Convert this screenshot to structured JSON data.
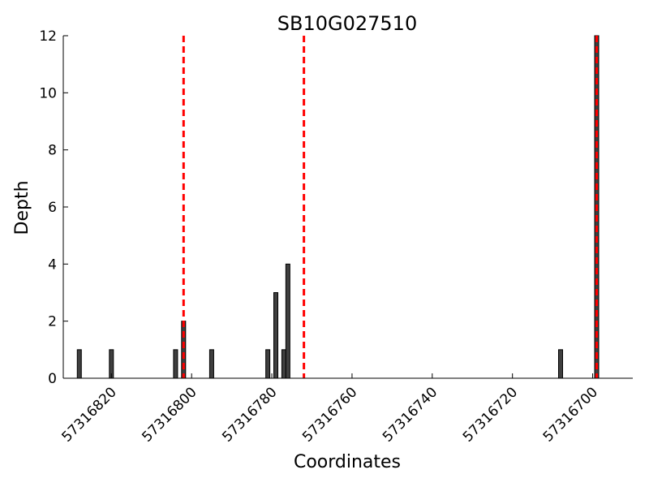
{
  "chart_data": {
    "type": "bar",
    "title": "SB10G027510",
    "xlabel": "Coordinates",
    "ylabel": "Depth",
    "x_axis_reversed": true,
    "xlim": [
      57316832,
      57316690
    ],
    "ylim": [
      0,
      12
    ],
    "xticks": [
      57316820,
      57316800,
      57316780,
      57316760,
      57316740,
      57316720,
      57316700
    ],
    "xtick_labels": [
      "57316820",
      "57316800",
      "57316780",
      "57316760",
      "57316740",
      "57316720",
      "57316700"
    ],
    "yticks": [
      0,
      2,
      4,
      6,
      8,
      10,
      12
    ],
    "ytick_labels": [
      "0",
      "2",
      "4",
      "6",
      "8",
      "10",
      "12"
    ],
    "grid": false,
    "bars": [
      {
        "x": 57316828,
        "depth": 1
      },
      {
        "x": 57316820,
        "depth": 1
      },
      {
        "x": 57316804,
        "depth": 1
      },
      {
        "x": 57316802,
        "depth": 2
      },
      {
        "x": 57316795,
        "depth": 1
      },
      {
        "x": 57316781,
        "depth": 1
      },
      {
        "x": 57316779,
        "depth": 3
      },
      {
        "x": 57316777,
        "depth": 1
      },
      {
        "x": 57316776,
        "depth": 4
      },
      {
        "x": 57316708,
        "depth": 1
      },
      {
        "x": 57316699,
        "depth": 12
      }
    ],
    "vlines": [
      57316802,
      57316772,
      57316699
    ],
    "colors": {
      "bar_fill": "#3f3f3f",
      "bar_edge": "#000000",
      "vline": "#ff0000"
    }
  }
}
